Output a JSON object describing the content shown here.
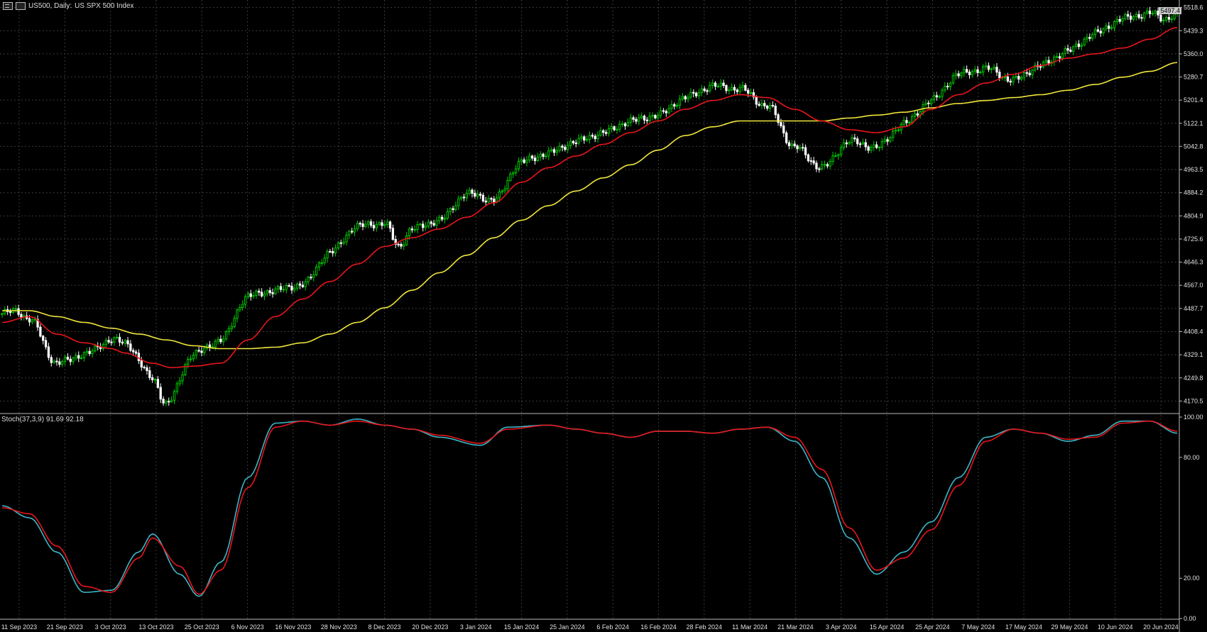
{
  "header": {
    "symbol": "US500, Daily:",
    "description": "US SPX 500 Index"
  },
  "price_badge": "5497.4",
  "stoch_label": "Stoch(37,3,9) 91.69 92.18",
  "colors": {
    "background": "#000000",
    "grid": "#3a3a3a",
    "bull_candle": "#00c800",
    "bear_candle": "#ffffff",
    "ma_fast": "#e8161b",
    "ma_slow": "#f0e63c",
    "stoch_main": "#3db5c8",
    "stoch_signal": "#e8161b",
    "axis_text": "#e0e0e0"
  },
  "chart_data": [
    {
      "type": "candlestick",
      "title": "US500, Daily: US SPX 500 Index",
      "price_ticks": [
        "5518.6",
        "5439.3",
        "5360.0",
        "5280.7",
        "5201.4",
        "5122.1",
        "5042.8",
        "4963.5",
        "4884.2",
        "4804.9",
        "4725.6",
        "4646.3",
        "4567.0",
        "4487.7",
        "4408.4",
        "4329.1",
        "4249.8",
        "4170.5"
      ],
      "ylim": [
        4135,
        5525
      ],
      "date_labels": [
        "11 Sep 2023",
        "21 Sep 2023",
        "3 Oct 2023",
        "13 Oct 2023",
        "25 Oct 2023",
        "6 Nov 2023",
        "16 Nov 2023",
        "28 Nov 2023",
        "8 Dec 2023",
        "20 Dec 2023",
        "3 Jan 2024",
        "15 Jan 2024",
        "25 Jan 2024",
        "6 Feb 2024",
        "16 Feb 2024",
        "28 Feb 2024",
        "11 Mar 2024",
        "21 Mar 2024",
        "3 Apr 2024",
        "15 Apr 2024",
        "25 Apr 2024",
        "7 May 2024",
        "17 May 2024",
        "29 May 2024",
        "10 Jun 2024",
        "20 Jun 2024"
      ],
      "close_anchors": [
        [
          0,
          4470
        ],
        [
          5,
          4480
        ],
        [
          10,
          4450
        ],
        [
          20,
          4300
        ],
        [
          30,
          4330
        ],
        [
          40,
          4380
        ],
        [
          45,
          4370
        ],
        [
          55,
          4250
        ],
        [
          60,
          4160
        ],
        [
          70,
          4330
        ],
        [
          80,
          4380
        ],
        [
          90,
          4530
        ],
        [
          100,
          4550
        ],
        [
          110,
          4570
        ],
        [
          120,
          4680
        ],
        [
          130,
          4770
        ],
        [
          140,
          4780
        ],
        [
          145,
          4700
        ],
        [
          150,
          4760
        ],
        [
          160,
          4790
        ],
        [
          170,
          4880
        ],
        [
          180,
          4860
        ],
        [
          190,
          4990
        ],
        [
          200,
          5020
        ],
        [
          210,
          5060
        ],
        [
          220,
          5090
        ],
        [
          230,
          5130
        ],
        [
          240,
          5150
        ],
        [
          250,
          5210
        ],
        [
          260,
          5250
        ],
        [
          270,
          5240
        ],
        [
          280,
          5180
        ],
        [
          290,
          5040
        ],
        [
          300,
          4970
        ],
        [
          310,
          5060
        ],
        [
          320,
          5040
        ],
        [
          330,
          5120
        ],
        [
          340,
          5200
        ],
        [
          350,
          5290
        ],
        [
          360,
          5310
        ],
        [
          370,
          5270
        ],
        [
          380,
          5320
        ],
        [
          390,
          5370
        ],
        [
          400,
          5430
        ],
        [
          410,
          5480
        ],
        [
          420,
          5500
        ],
        [
          425,
          5480
        ],
        [
          430,
          5497
        ]
      ],
      "ma_fast_anchors": [
        [
          0,
          4440
        ],
        [
          10,
          4460
        ],
        [
          20,
          4400
        ],
        [
          30,
          4370
        ],
        [
          40,
          4350
        ],
        [
          45,
          4335
        ],
        [
          55,
          4300
        ],
        [
          62,
          4285
        ],
        [
          70,
          4290
        ],
        [
          80,
          4300
        ],
        [
          90,
          4380
        ],
        [
          100,
          4460
        ],
        [
          110,
          4520
        ],
        [
          120,
          4580
        ],
        [
          130,
          4640
        ],
        [
          140,
          4700
        ],
        [
          150,
          4730
        ],
        [
          160,
          4760
        ],
        [
          170,
          4800
        ],
        [
          180,
          4850
        ],
        [
          190,
          4920
        ],
        [
          200,
          4970
        ],
        [
          210,
          5010
        ],
        [
          220,
          5050
        ],
        [
          230,
          5090
        ],
        [
          240,
          5130
        ],
        [
          250,
          5170
        ],
        [
          260,
          5200
        ],
        [
          270,
          5220
        ],
        [
          280,
          5210
        ],
        [
          290,
          5170
        ],
        [
          300,
          5130
        ],
        [
          310,
          5100
        ],
        [
          320,
          5090
        ],
        [
          330,
          5110
        ],
        [
          340,
          5170
        ],
        [
          350,
          5220
        ],
        [
          360,
          5260
        ],
        [
          370,
          5290
        ],
        [
          380,
          5320
        ],
        [
          390,
          5345
        ],
        [
          400,
          5360
        ],
        [
          410,
          5380
        ],
        [
          420,
          5410
        ],
        [
          430,
          5450
        ]
      ],
      "ma_slow_anchors": [
        [
          0,
          4480
        ],
        [
          10,
          4480
        ],
        [
          20,
          4460
        ],
        [
          30,
          4440
        ],
        [
          40,
          4420
        ],
        [
          50,
          4400
        ],
        [
          60,
          4380
        ],
        [
          70,
          4360
        ],
        [
          80,
          4350
        ],
        [
          90,
          4350
        ],
        [
          100,
          4355
        ],
        [
          110,
          4370
        ],
        [
          120,
          4400
        ],
        [
          130,
          4440
        ],
        [
          140,
          4490
        ],
        [
          150,
          4550
        ],
        [
          160,
          4610
        ],
        [
          170,
          4670
        ],
        [
          180,
          4730
        ],
        [
          190,
          4790
        ],
        [
          200,
          4840
        ],
        [
          210,
          4890
        ],
        [
          220,
          4935
        ],
        [
          230,
          4980
        ],
        [
          240,
          5030
        ],
        [
          250,
          5080
        ],
        [
          260,
          5110
        ],
        [
          270,
          5130
        ],
        [
          280,
          5130
        ],
        [
          290,
          5130
        ],
        [
          300,
          5130
        ],
        [
          310,
          5140
        ],
        [
          320,
          5150
        ],
        [
          330,
          5160
        ],
        [
          340,
          5175
        ],
        [
          350,
          5190
        ],
        [
          360,
          5200
        ],
        [
          370,
          5210
        ],
        [
          380,
          5220
        ],
        [
          390,
          5235
        ],
        [
          400,
          5255
        ],
        [
          410,
          5280
        ],
        [
          420,
          5300
        ],
        [
          430,
          5330
        ]
      ],
      "n_bars": 431
    },
    {
      "type": "line",
      "title": "Stoch(37,3,9) 91.69 92.18",
      "y_ticks": [
        "100.00",
        "80.00",
        "20.00",
        "0.00"
      ],
      "ylim": [
        0,
        100
      ],
      "main_anchors": [
        [
          0,
          56
        ],
        [
          10,
          50
        ],
        [
          20,
          33
        ],
        [
          30,
          13
        ],
        [
          40,
          14
        ],
        [
          50,
          33
        ],
        [
          55,
          42
        ],
        [
          65,
          22
        ],
        [
          72,
          11
        ],
        [
          80,
          28
        ],
        [
          90,
          70
        ],
        [
          100,
          97
        ],
        [
          110,
          98
        ],
        [
          120,
          96
        ],
        [
          130,
          99
        ],
        [
          140,
          96
        ],
        [
          150,
          94
        ],
        [
          160,
          90
        ],
        [
          175,
          86
        ],
        [
          185,
          95
        ],
        [
          200,
          96
        ],
        [
          210,
          94
        ],
        [
          220,
          92
        ],
        [
          230,
          90
        ],
        [
          240,
          93
        ],
        [
          250,
          93
        ],
        [
          260,
          92
        ],
        [
          270,
          94
        ],
        [
          280,
          95
        ],
        [
          290,
          88
        ],
        [
          300,
          70
        ],
        [
          310,
          40
        ],
        [
          320,
          22
        ],
        [
          330,
          33
        ],
        [
          340,
          48
        ],
        [
          350,
          70
        ],
        [
          360,
          90
        ],
        [
          370,
          94
        ],
        [
          380,
          92
        ],
        [
          390,
          88
        ],
        [
          400,
          91
        ],
        [
          410,
          98
        ],
        [
          420,
          98
        ],
        [
          430,
          92
        ]
      ],
      "signal_anchors": [
        [
          0,
          55
        ],
        [
          10,
          52
        ],
        [
          20,
          36
        ],
        [
          30,
          16
        ],
        [
          40,
          13
        ],
        [
          50,
          30
        ],
        [
          55,
          40
        ],
        [
          65,
          26
        ],
        [
          72,
          12
        ],
        [
          80,
          24
        ],
        [
          90,
          65
        ],
        [
          100,
          95
        ],
        [
          110,
          98
        ],
        [
          120,
          96
        ],
        [
          130,
          98
        ],
        [
          140,
          96
        ],
        [
          150,
          94
        ],
        [
          160,
          91
        ],
        [
          175,
          87
        ],
        [
          185,
          94
        ],
        [
          200,
          96
        ],
        [
          210,
          94
        ],
        [
          220,
          92
        ],
        [
          230,
          90
        ],
        [
          240,
          93
        ],
        [
          250,
          93
        ],
        [
          260,
          92
        ],
        [
          270,
          94
        ],
        [
          280,
          95
        ],
        [
          290,
          90
        ],
        [
          300,
          74
        ],
        [
          310,
          45
        ],
        [
          320,
          24
        ],
        [
          330,
          30
        ],
        [
          340,
          44
        ],
        [
          350,
          66
        ],
        [
          360,
          88
        ],
        [
          370,
          94
        ],
        [
          380,
          92
        ],
        [
          390,
          89
        ],
        [
          400,
          90
        ],
        [
          410,
          97
        ],
        [
          420,
          98
        ],
        [
          430,
          93
        ]
      ]
    }
  ]
}
